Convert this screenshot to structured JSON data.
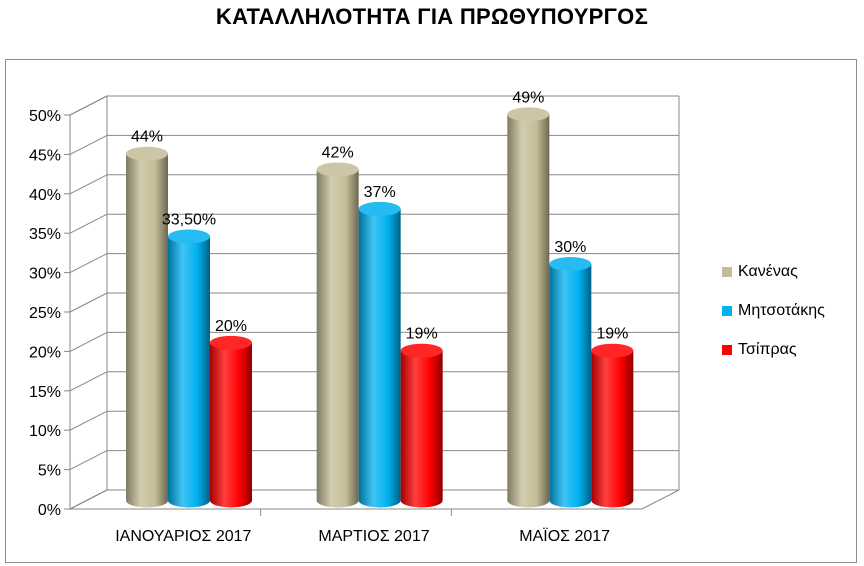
{
  "chart_data": {
    "type": "bar",
    "title": "ΚΑΤΑΛΛΗΛΟΤΗΤΑ ΓΙΑ ΠΡΩΘΥΠΟΥΡΓΟΣ",
    "categories": [
      "ΙΑΝΟΥΑΡΙΟΣ 2017",
      "ΜΑΡΤΙΟΣ 2017",
      "ΜΑΪΟΣ 2017"
    ],
    "series": [
      {
        "name": "Κανένας",
        "color": "#C4BC96",
        "values": [
          44,
          42,
          49
        ],
        "labels": [
          "44%",
          "42%",
          "49%"
        ]
      },
      {
        "name": "Μητσοτάκης",
        "color": "#00B0F0",
        "values": [
          33.5,
          37,
          30
        ],
        "labels": [
          "33,50%",
          "37%",
          "30%"
        ]
      },
      {
        "name": "Τσίπρας",
        "color": "#FF0000",
        "values": [
          20,
          19,
          19
        ],
        "labels": [
          "20%",
          "19%",
          "19%"
        ]
      }
    ],
    "ylim": [
      0,
      50
    ],
    "yticks": [
      "0%",
      "5%",
      "10%",
      "15%",
      "20%",
      "25%",
      "30%",
      "35%",
      "40%",
      "45%",
      "50%"
    ],
    "xlabel": "",
    "ylabel": "",
    "grid": true,
    "legend": "right",
    "style": "3d-cylinder"
  }
}
